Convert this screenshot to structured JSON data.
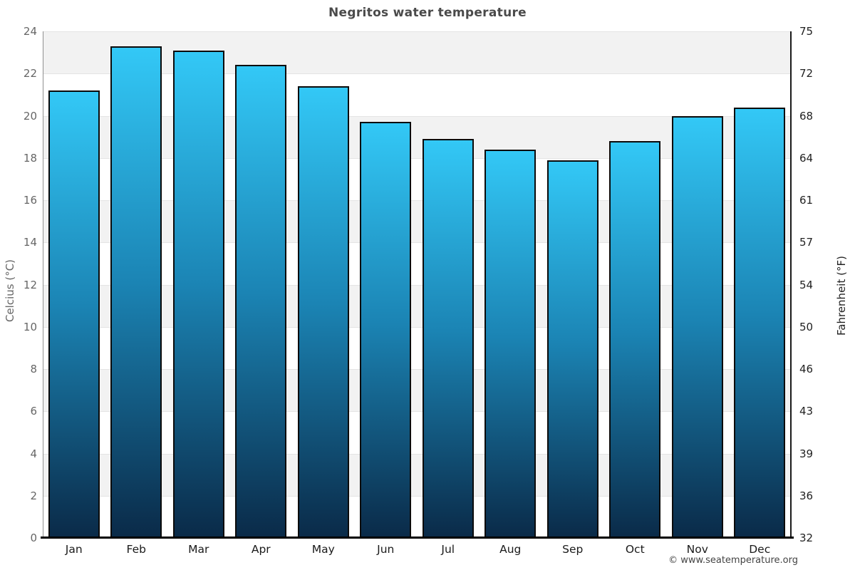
{
  "title": "Negritos water temperature",
  "footer": {
    "credit": "© www.seatemperature.org"
  },
  "chart_data": {
    "type": "bar",
    "title": "Negritos water temperature",
    "categories": [
      "Jan",
      "Feb",
      "Mar",
      "Apr",
      "May",
      "Jun",
      "Jul",
      "Aug",
      "Sep",
      "Oct",
      "Nov",
      "Dec"
    ],
    "values": [
      21.2,
      23.3,
      23.1,
      22.4,
      21.4,
      19.7,
      18.9,
      18.4,
      17.9,
      18.8,
      20.0,
      20.4
    ],
    "series_name": "Water temperature",
    "xlabel": "",
    "ylabel_left": "Celcius (°C)",
    "ylabel_right": "Fahrenheit (°F)",
    "ylim": [
      0,
      24
    ],
    "y_left_ticks": [
      0,
      2,
      4,
      6,
      8,
      10,
      12,
      14,
      16,
      18,
      20,
      22,
      24
    ],
    "y_right_ticks": [
      32,
      36,
      39,
      43,
      46,
      50,
      54,
      57,
      61,
      64,
      68,
      72,
      75
    ],
    "grid": "alternating horizontal bands every 2°C, gray band at top",
    "legend": "none",
    "colors": {
      "bar_top": "#33c8f6",
      "bar_mid": "#1b84b4",
      "bar_bottom": "#0a2a48",
      "bar_border": "#0b0b0b",
      "band_gray": "#f2f2f2",
      "band_white": "#ffffff",
      "title_text": "#4a4a4a",
      "left_axis_text": "#666666",
      "right_axis_text": "#222222"
    }
  }
}
